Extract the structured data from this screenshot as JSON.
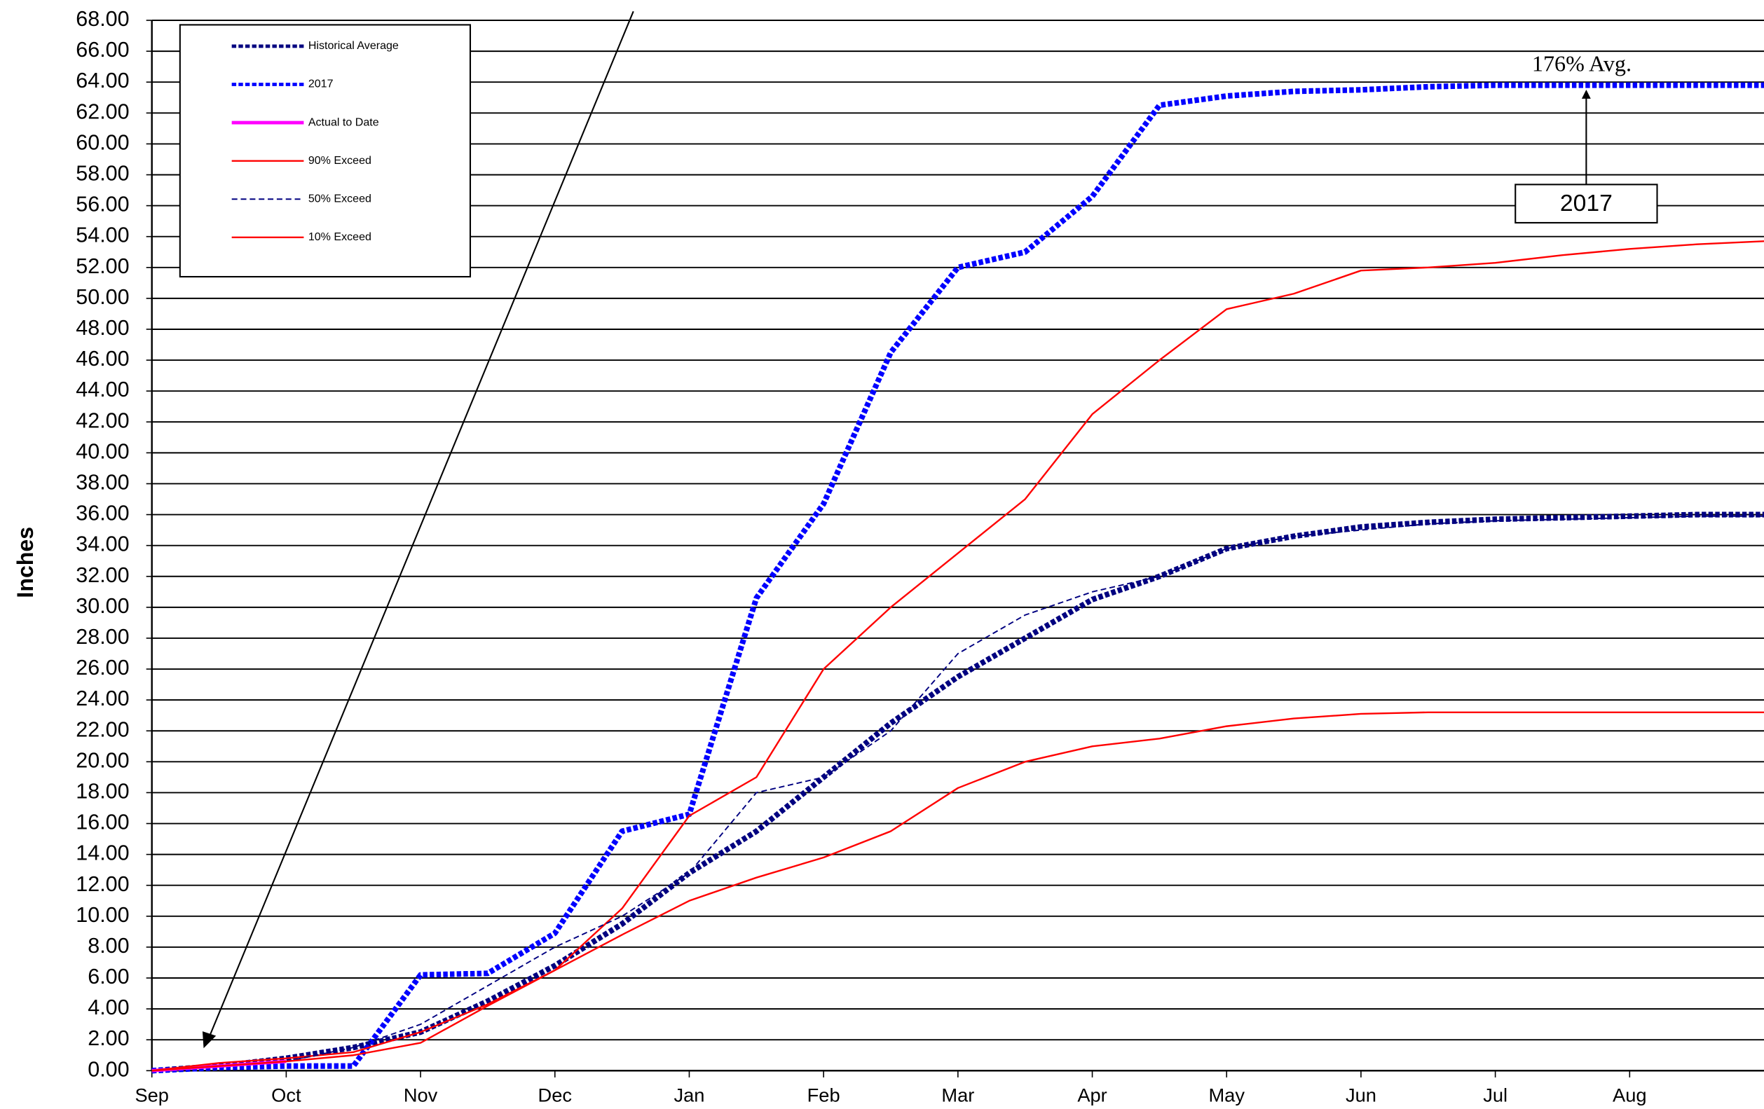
{
  "chart_data": {
    "type": "line",
    "y_label": "Inches",
    "categories": [
      "Sep",
      null,
      "Oct",
      null,
      "Nov",
      null,
      "Dec",
      null,
      "Jan",
      null,
      "Feb",
      null,
      "Mar",
      null,
      "Apr",
      null,
      "May",
      null,
      "Jun",
      null,
      "Jul",
      null,
      "Aug",
      null,
      null
    ],
    "series": [
      {
        "name": "Historical Average",
        "color": "#000080",
        "width": 5,
        "dash": "4 2",
        "values": [
          0,
          0.3,
          0.8,
          1.5,
          2.5,
          4.5,
          6.8,
          9.5,
          12.8,
          15.5,
          19,
          22.5,
          25.5,
          28,
          30.5,
          32,
          33.8,
          34.6,
          35.2,
          35.5,
          35.7,
          35.8,
          35.9,
          36,
          36
        ]
      },
      {
        "name": "2017",
        "color": "#0000ff",
        "width": 5,
        "dash": "4 2",
        "values": [
          0,
          0.2,
          0.3,
          0.3,
          6.2,
          6.3,
          8.9,
          15.5,
          16.6,
          30.6,
          36.7,
          46.5,
          52,
          53,
          56.6,
          62.5,
          63.1,
          63.4,
          63.5,
          63.7,
          63.8,
          63.8,
          63.8,
          63.8,
          63.8
        ]
      },
      {
        "name": "Actual to Date",
        "color": "#ff00ff",
        "width": 3,
        "dash": null,
        "values": [
          0,
          0.3,
          0.6,
          null,
          null,
          null,
          null,
          null,
          null,
          null,
          null,
          null,
          null,
          null,
          null,
          null,
          null,
          null,
          null,
          null,
          null,
          null,
          null,
          null,
          null
        ]
      },
      {
        "name": "90% Exceed",
        "color": "#ff0000",
        "width": 1.5,
        "dash": null,
        "values": [
          0,
          0.5,
          0.8,
          1.2,
          2.5,
          4.3,
          6.5,
          10.5,
          16.5,
          19,
          26,
          30,
          33.5,
          37,
          42.5,
          46,
          49.3,
          50.3,
          51.8,
          52,
          52.3,
          52.8,
          53.2,
          53.5,
          53.7
        ]
      },
      {
        "name": "50% Exceed",
        "color": "#000080",
        "width": 1.2,
        "dash": "5 3",
        "values": [
          0,
          0.3,
          0.6,
          1.5,
          3,
          5.5,
          8,
          10,
          12.8,
          18,
          19,
          22,
          27,
          29.5,
          31,
          32,
          33.8,
          34.6,
          35,
          35.4,
          35.6,
          35.7,
          35.8,
          35.9,
          35.9
        ]
      },
      {
        "name": "10% Exceed",
        "color": "#ff0000",
        "width": 1.5,
        "dash": null,
        "values": [
          0,
          0.3,
          0.6,
          1.0,
          1.8,
          4.2,
          6.5,
          8.8,
          11,
          12.5,
          13.8,
          15.5,
          18.3,
          20,
          21,
          21.5,
          22.3,
          22.8,
          23.1,
          23.2,
          23.2,
          23.2,
          23.2,
          23.2,
          23.2
        ]
      }
    ],
    "ylim": [
      0,
      68
    ],
    "yticks": [
      {
        "value": 0,
        "label": "0.00"
      },
      {
        "value": 2,
        "label": "2.00"
      },
      {
        "value": 4,
        "label": "4.00"
      },
      {
        "value": 6,
        "label": "6.00"
      },
      {
        "value": 8,
        "label": "8.00"
      },
      {
        "value": 10,
        "label": "10.00"
      },
      {
        "value": 12,
        "label": "12.00"
      },
      {
        "value": 14,
        "label": "14.00"
      },
      {
        "value": 16,
        "label": "16.00"
      },
      {
        "value": 18,
        "label": "18.00"
      },
      {
        "value": 20,
        "label": "20.00"
      },
      {
        "value": 22,
        "label": "22.00"
      },
      {
        "value": 24,
        "label": "24.00"
      },
      {
        "value": 26,
        "label": "26.00"
      },
      {
        "value": 28,
        "label": "28.00"
      },
      {
        "value": 30,
        "label": "30.00"
      },
      {
        "value": 32,
        "label": "32.00"
      },
      {
        "value": 34,
        "label": "34.00"
      },
      {
        "value": 36,
        "label": "36.00"
      },
      {
        "value": 38,
        "label": "38.00"
      },
      {
        "value": 40,
        "label": "40.00"
      },
      {
        "value": 42,
        "label": "42.00"
      },
      {
        "value": 44,
        "label": "44.00"
      },
      {
        "value": 46,
        "label": "46.00"
      },
      {
        "value": 48,
        "label": "48.00"
      },
      {
        "value": 50,
        "label": "50.00"
      },
      {
        "value": 52,
        "label": "52.00"
      },
      {
        "value": 54,
        "label": "54.00"
      },
      {
        "value": 56,
        "label": "56.00"
      },
      {
        "value": 58,
        "label": "58.00"
      },
      {
        "value": 60,
        "label": "60.00"
      },
      {
        "value": 62,
        "label": "62.00"
      },
      {
        "value": 64,
        "label": "64.00"
      },
      {
        "value": 66,
        "label": "66.00"
      },
      {
        "value": 68,
        "label": "68.00"
      }
    ],
    "grid": true,
    "legend": "upper left",
    "annotations": [
      {
        "text": "176% Avg."
      },
      {
        "text": "2017"
      }
    ]
  }
}
